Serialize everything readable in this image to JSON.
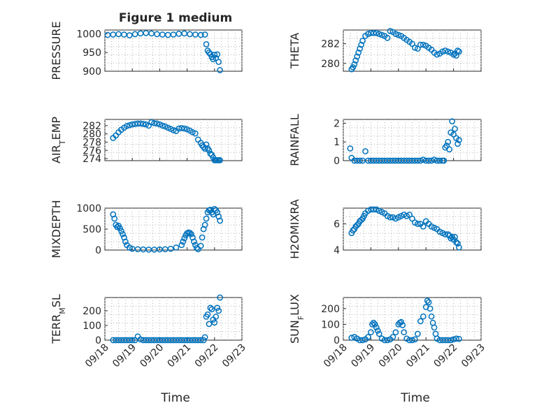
{
  "figure": {
    "title": "Figure 1 medium",
    "xlabel": "Time",
    "xticks": [
      "09/18",
      "09/19",
      "09/20",
      "09/21",
      "09/22",
      "09/23"
    ]
  },
  "chart_data": [
    {
      "type": "scatter",
      "id": "pressure",
      "ylabel": "PRESSURE",
      "ylim": [
        900,
        1010
      ],
      "yticks": [
        900,
        950,
        1000
      ],
      "xlim": [
        0,
        5
      ],
      "x": [
        0.1,
        0.3,
        0.5,
        0.7,
        0.9,
        1.1,
        1.3,
        1.5,
        1.7,
        1.9,
        2.1,
        2.3,
        2.5,
        2.7,
        2.9,
        3.1,
        3.3,
        3.5,
        3.65,
        3.7,
        3.75,
        3.8,
        3.85,
        3.9,
        3.95,
        4.0,
        4.05,
        4.1,
        4.15,
        4.2
      ],
      "y": [
        997,
        998,
        999,
        998,
        996,
        999,
        1001,
        1002,
        1001,
        999,
        998,
        997,
        998,
        1000,
        1001,
        999,
        998,
        997,
        998,
        972,
        955,
        950,
        946,
        938,
        932,
        944,
        935,
        945,
        925,
        903
      ]
    },
    {
      "type": "scatter",
      "id": "theta",
      "ylabel": "THETA",
      "ylim": [
        279.2,
        283.4
      ],
      "yticks": [
        280,
        282
      ],
      "xlim": [
        0,
        5
      ],
      "x": [
        0.3,
        0.35,
        0.4,
        0.45,
        0.5,
        0.55,
        0.6,
        0.65,
        0.7,
        0.8,
        0.9,
        1.0,
        1.1,
        1.2,
        1.3,
        1.4,
        1.5,
        1.6,
        1.7,
        1.8,
        1.9,
        2.0,
        2.1,
        2.2,
        2.3,
        2.4,
        2.5,
        2.6,
        2.7,
        2.8,
        2.9,
        3.0,
        3.1,
        3.2,
        3.3,
        3.4,
        3.5,
        3.6,
        3.7,
        3.8,
        3.9,
        4.0,
        4.05,
        4.1,
        4.15,
        4.2
      ],
      "y": [
        279.4,
        279.6,
        279.9,
        280.3,
        280.7,
        281.1,
        281.5,
        281.9,
        282.3,
        282.8,
        283.0,
        283.1,
        283.1,
        283.1,
        283.0,
        282.9,
        282.8,
        282.6,
        283.3,
        283.2,
        283.0,
        282.9,
        282.8,
        282.6,
        282.4,
        282.2,
        282.0,
        281.6,
        281.5,
        281.9,
        281.9,
        281.8,
        281.6,
        281.4,
        281.1,
        280.9,
        281.0,
        281.2,
        281.3,
        281.2,
        281.1,
        280.9,
        281.0,
        280.8,
        281.3,
        281.2
      ]
    },
    {
      "type": "scatter",
      "id": "air_temp",
      "ylabel": "AIR_TEMP",
      "ylim": [
        273.5,
        283.5
      ],
      "yticks": [
        274,
        276,
        278,
        280,
        282
      ],
      "xlim": [
        0,
        5
      ],
      "x": [
        0.3,
        0.4,
        0.5,
        0.6,
        0.7,
        0.8,
        0.9,
        1.0,
        1.1,
        1.2,
        1.3,
        1.4,
        1.5,
        1.6,
        1.7,
        1.8,
        1.9,
        2.0,
        2.1,
        2.2,
        2.3,
        2.4,
        2.5,
        2.6,
        2.7,
        2.8,
        2.9,
        3.0,
        3.1,
        3.2,
        3.3,
        3.4,
        3.5,
        3.55,
        3.6,
        3.65,
        3.7,
        3.75,
        3.8,
        3.85,
        3.9,
        3.95,
        4.0,
        4.05,
        4.1,
        4.15,
        4.2
      ],
      "y": [
        279.0,
        279.6,
        280.4,
        281.0,
        281.5,
        281.9,
        282.1,
        282.3,
        282.4,
        282.5,
        282.5,
        282.4,
        282.3,
        282.0,
        282.8,
        282.6,
        282.5,
        282.3,
        282.0,
        281.8,
        281.5,
        281.2,
        280.9,
        280.7,
        281.3,
        281.4,
        281.3,
        281.1,
        280.8,
        280.4,
        280.1,
        278.6,
        277.8,
        277.2,
        276.8,
        276.4,
        277.4,
        276.5,
        276.0,
        275.2,
        274.9,
        274.3,
        273.6,
        273.6,
        273.6,
        273.6,
        273.6
      ]
    },
    {
      "type": "scatter",
      "id": "rainfall",
      "ylabel": "RAINFALL",
      "ylim": [
        0,
        2.2
      ],
      "yticks": [
        0,
        1,
        2
      ],
      "xlim": [
        0,
        5
      ],
      "x": [
        0.25,
        0.3,
        0.4,
        0.5,
        0.6,
        0.7,
        0.8,
        0.9,
        1.0,
        1.1,
        1.2,
        1.3,
        1.4,
        1.5,
        1.6,
        1.7,
        1.8,
        1.9,
        2.0,
        2.1,
        2.2,
        2.3,
        2.4,
        2.5,
        2.6,
        2.7,
        2.8,
        2.9,
        3.0,
        3.1,
        3.2,
        3.3,
        3.4,
        3.5,
        3.6,
        3.65,
        3.7,
        3.75,
        3.8,
        3.85,
        3.9,
        3.95,
        4.0,
        4.05,
        4.1,
        4.15,
        4.2
      ],
      "y": [
        0.65,
        0.15,
        0,
        0,
        0,
        0,
        0.5,
        0,
        0,
        0,
        0,
        0,
        0,
        0,
        0,
        0,
        0,
        0,
        0,
        0,
        0,
        0,
        0,
        0,
        0,
        0,
        0,
        0.05,
        0,
        0,
        0,
        0.05,
        0,
        0,
        0,
        0,
        0.7,
        0.8,
        1.0,
        0.6,
        1.5,
        2.1,
        1.4,
        1.7,
        1.2,
        0.9,
        1.1
      ]
    },
    {
      "type": "scatter",
      "id": "mixdepth",
      "ylabel": "MIXDEPTH",
      "ylim": [
        0,
        1000
      ],
      "yticks": [
        0,
        500,
        1000
      ],
      "xlim": [
        0,
        5
      ],
      "x": [
        0.3,
        0.35,
        0.4,
        0.45,
        0.5,
        0.55,
        0.6,
        0.65,
        0.7,
        0.75,
        0.8,
        0.9,
        1.0,
        1.2,
        1.4,
        1.6,
        1.8,
        2.0,
        2.2,
        2.4,
        2.6,
        2.8,
        2.85,
        2.9,
        2.95,
        3.0,
        3.05,
        3.1,
        3.15,
        3.2,
        3.25,
        3.3,
        3.35,
        3.4,
        3.5,
        3.55,
        3.6,
        3.65,
        3.7,
        3.75,
        3.8,
        3.85,
        3.9,
        3.95,
        4.0,
        4.05,
        4.1,
        4.15,
        4.2
      ],
      "y": [
        850,
        750,
        600,
        550,
        580,
        520,
        450,
        380,
        300,
        200,
        120,
        60,
        30,
        20,
        15,
        10,
        10,
        15,
        20,
        30,
        60,
        120,
        200,
        280,
        350,
        400,
        420,
        410,
        380,
        300,
        200,
        120,
        50,
        20,
        100,
        300,
        500,
        600,
        750,
        900,
        950,
        960,
        900,
        850,
        980,
        950,
        900,
        800,
        700
      ]
    },
    {
      "type": "scatter",
      "id": "h2omixra",
      "ylabel": "H2OMIXRA",
      "ylim": [
        4,
        7.2
      ],
      "yticks": [
        4,
        6
      ],
      "xlim": [
        0,
        5
      ],
      "x": [
        0.3,
        0.35,
        0.4,
        0.45,
        0.5,
        0.55,
        0.6,
        0.65,
        0.7,
        0.75,
        0.8,
        0.9,
        1.0,
        1.1,
        1.2,
        1.3,
        1.4,
        1.5,
        1.6,
        1.7,
        1.8,
        1.9,
        2.0,
        2.1,
        2.2,
        2.3,
        2.4,
        2.5,
        2.6,
        2.7,
        2.8,
        2.9,
        3.0,
        3.1,
        3.2,
        3.3,
        3.4,
        3.5,
        3.6,
        3.7,
        3.8,
        3.85,
        3.9,
        3.95,
        4.0,
        4.05,
        4.1,
        4.15,
        4.2
      ],
      "y": [
        5.3,
        5.5,
        5.6,
        5.8,
        5.9,
        6.0,
        6.2,
        6.3,
        6.4,
        6.6,
        6.8,
        7.0,
        7.1,
        7.1,
        7.1,
        7.0,
        6.9,
        6.8,
        6.6,
        6.5,
        6.5,
        6.4,
        6.5,
        6.6,
        6.7,
        6.6,
        6.7,
        6.4,
        6.1,
        6.0,
        6.0,
        5.8,
        6.2,
        6.0,
        5.8,
        5.7,
        5.6,
        5.4,
        5.3,
        5.2,
        5.2,
        5.1,
        4.9,
        5.0,
        4.8,
        5.0,
        4.6,
        4.5,
        4.2
      ]
    },
    {
      "type": "scatter",
      "id": "terr_msl",
      "ylabel": "TERR_MSL",
      "ylim": [
        0,
        290
      ],
      "yticks": [
        0,
        100,
        200
      ],
      "xlim": [
        0,
        5
      ],
      "x": [
        0.3,
        0.4,
        0.5,
        0.6,
        0.7,
        0.8,
        0.9,
        1.0,
        1.1,
        1.2,
        1.3,
        1.4,
        1.5,
        1.6,
        1.7,
        1.8,
        1.9,
        2.0,
        2.1,
        2.2,
        2.3,
        2.4,
        2.5,
        2.6,
        2.7,
        2.8,
        2.9,
        3.0,
        3.1,
        3.2,
        3.3,
        3.4,
        3.5,
        3.6,
        3.65,
        3.7,
        3.75,
        3.8,
        3.85,
        3.9,
        3.95,
        4.0,
        4.05,
        4.1,
        4.15,
        4.2
      ],
      "y": [
        0,
        0,
        0,
        0,
        0,
        0,
        0,
        0,
        0,
        25,
        5,
        0,
        0,
        0,
        0,
        0,
        0,
        0,
        0,
        0,
        0,
        0,
        0,
        0,
        0,
        0,
        0,
        0,
        0,
        0,
        0,
        0,
        0,
        0,
        20,
        160,
        175,
        110,
        220,
        210,
        140,
        120,
        160,
        220,
        200,
        290
      ]
    },
    {
      "type": "scatter",
      "id": "sun_flux",
      "ylabel": "SUN_FLUX",
      "ylim": [
        0,
        270
      ],
      "yticks": [
        0,
        100,
        200
      ],
      "xlim": [
        0,
        5
      ],
      "x": [
        0.3,
        0.4,
        0.5,
        0.6,
        0.7,
        0.8,
        0.9,
        1.0,
        1.05,
        1.1,
        1.15,
        1.2,
        1.25,
        1.3,
        1.4,
        1.5,
        1.6,
        1.7,
        1.8,
        1.9,
        2.0,
        2.05,
        2.1,
        2.15,
        2.2,
        2.3,
        2.4,
        2.5,
        2.6,
        2.7,
        2.8,
        2.9,
        3.0,
        3.05,
        3.1,
        3.15,
        3.2,
        3.25,
        3.3,
        3.35,
        3.4,
        3.5,
        3.6,
        3.7,
        3.8,
        3.9,
        4.0,
        4.1,
        4.2
      ],
      "y": [
        15,
        20,
        10,
        0,
        0,
        5,
        20,
        50,
        100,
        110,
        100,
        80,
        60,
        40,
        10,
        0,
        0,
        5,
        20,
        50,
        100,
        110,
        115,
        95,
        50,
        10,
        0,
        0,
        5,
        40,
        120,
        150,
        210,
        250,
        240,
        200,
        150,
        110,
        80,
        40,
        10,
        0,
        0,
        0,
        0,
        0,
        5,
        10,
        8
      ]
    }
  ]
}
